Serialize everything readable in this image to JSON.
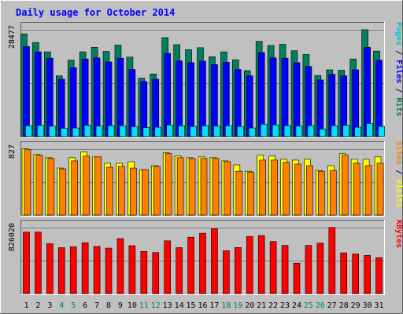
{
  "chart_data": {
    "type": "bar",
    "title": "Daily usage for October 2014",
    "x": {
      "labels": [
        "1",
        "2",
        "3",
        "4",
        "5",
        "6",
        "7",
        "8",
        "9",
        "10",
        "11",
        "12",
        "13",
        "14",
        "15",
        "16",
        "17",
        "18",
        "19",
        "20",
        "21",
        "22",
        "23",
        "24",
        "25",
        "26",
        "27",
        "28",
        "29",
        "30",
        "31"
      ],
      "weekend_days": [
        4,
        5,
        11,
        12,
        18,
        19,
        25,
        26
      ]
    },
    "panels": [
      {
        "id": "top",
        "max_label": "28477",
        "ylim": [
          0,
          28477
        ],
        "axis_labels": [
          {
            "text": "Pages",
            "color": "#00c8c8"
          },
          {
            "text": " / ",
            "color": "#000080"
          },
          {
            "text": "Files",
            "color": "#0000ff"
          },
          {
            "text": " / ",
            "color": "#000080"
          },
          {
            "text": "Hits",
            "color": "#00805c"
          }
        ],
        "series": [
          {
            "name": "Hits",
            "color": "#00805c",
            "values": [
              27400,
              25100,
              22600,
              16200,
              20400,
              22600,
              23800,
              22700,
              24400,
              21200,
              15600,
              16700,
              26400,
              24500,
              23200,
              23700,
              21300,
              22600,
              20500,
              17600,
              25400,
              24300,
              24600,
              22900,
              21900,
              16300,
              17800,
              17700,
              20700,
              28500,
              22800
            ]
          },
          {
            "name": "Files",
            "color": "#0000ff",
            "values": [
              24000,
              22600,
              20900,
              15300,
              18400,
              20700,
              21000,
              19900,
              20900,
              17900,
              14700,
              15300,
              22200,
              20200,
              19700,
              20100,
              19200,
              19800,
              17900,
              16200,
              22400,
              21000,
              20900,
              19700,
              18700,
              15100,
              16600,
              16200,
              17800,
              23800,
              20400
            ]
          },
          {
            "name": "Pages",
            "color": "#00e0ff",
            "values": [
              2900,
              3000,
              2800,
              2200,
              2300,
              3000,
              2800,
              2900,
              2900,
              2700,
              2400,
              2500,
              3100,
              2900,
              2700,
              2900,
              2800,
              2900,
              2700,
              2300,
              3300,
              3100,
              2900,
              2800,
              2900,
              2000,
              2900,
              3000,
              2500,
              3500,
              2700
            ]
          }
        ]
      },
      {
        "id": "middle",
        "max_label": "827",
        "ylim": [
          0,
          827
        ],
        "axis_labels": [
          {
            "text": "Sites",
            "color": "#ff8000"
          },
          {
            "text": " / ",
            "color": "#000080"
          },
          {
            "text": "Visits",
            "color": "#ffff00"
          }
        ],
        "series": [
          {
            "name": "Visits",
            "color": "#ffff00",
            "values": [
              830,
              760,
              720,
              590,
              720,
              790,
              730,
              650,
              650,
              670,
              570,
              620,
              780,
              740,
              720,
              730,
              720,
              680,
              630,
              550,
              750,
              740,
              700,
              690,
              700,
              560,
              620,
              770,
              700,
              700,
              730
            ]
          },
          {
            "name": "Sites",
            "color": "#ff8000",
            "values": [
              820,
              750,
              710,
              580,
              680,
              740,
              730,
              600,
              610,
              590,
              570,
              610,
              770,
              720,
              710,
              710,
              710,
              670,
              550,
              540,
              690,
              690,
              660,
              640,
              620,
              550,
              560,
              750,
              650,
              620,
              650
            ]
          }
        ]
      },
      {
        "id": "bottom",
        "max_label": "826020",
        "ylim": [
          0,
          826020
        ],
        "axis_labels": [
          {
            "text": "KBytes",
            "color": "#ff0000"
          }
        ],
        "series": [
          {
            "name": "KBytes",
            "color": "#ff0000",
            "values": [
              771000,
              770000,
              625000,
              575000,
              586000,
              637000,
              591000,
              570000,
              689000,
              600000,
              528000,
              514000,
              661000,
              576000,
              706000,
              756000,
              812000,
              537000,
              577000,
              717000,
              727000,
              652000,
              603000,
              381000,
              603000,
              632000,
              829000,
              511000,
              496000,
              478000,
              450000
            ]
          }
        ]
      }
    ]
  }
}
